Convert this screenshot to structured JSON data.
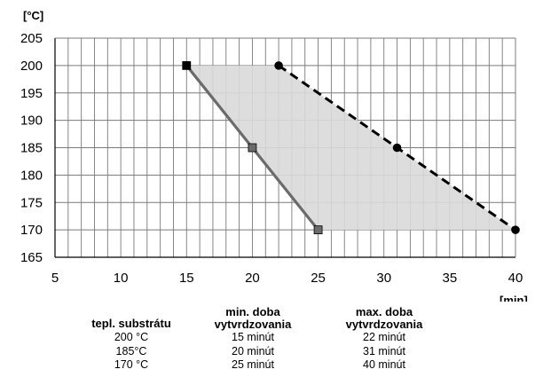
{
  "chart_data": {
    "type": "line",
    "ylabel": "[°C]",
    "xlabel": "[min]",
    "xlim": [
      5,
      40
    ],
    "ylim": [
      165,
      205
    ],
    "x_ticks": [
      5,
      10,
      15,
      20,
      25,
      30,
      35,
      40
    ],
    "y_ticks": [
      165,
      170,
      175,
      180,
      185,
      190,
      195,
      200,
      205
    ],
    "grid": true,
    "series": [
      {
        "style": "solid",
        "marker": "square",
        "color": "#6b6b6b",
        "x": [
          15,
          20,
          25
        ],
        "y": [
          200,
          185,
          170
        ]
      },
      {
        "style": "dashed",
        "marker": "circle",
        "color": "#000000",
        "x": [
          22,
          31,
          40
        ],
        "y": [
          200,
          185,
          170
        ]
      }
    ],
    "fill_color": "#d9d9d9"
  },
  "table": {
    "headers": [
      "tepl. substrátu",
      "min. doba\nvytvrdzovania",
      "max. doba\nvytvrdzovania"
    ],
    "rows": [
      [
        "200 °C",
        "15 minút",
        "22 minút"
      ],
      [
        "185°C",
        "20 minút",
        "31 minút"
      ],
      [
        "170 °C",
        "25 minút",
        "40 minút"
      ]
    ]
  }
}
